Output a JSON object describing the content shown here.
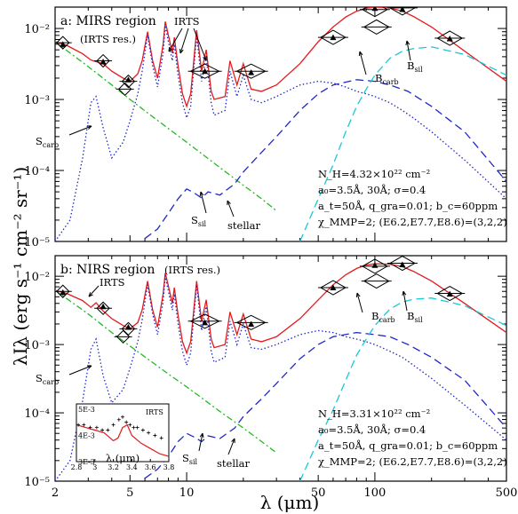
{
  "chart_data": [
    {
      "type": "line",
      "panel": "a",
      "title": "a: MIRS region",
      "subtitle": "(IRTS res.)",
      "xscale": "log",
      "yscale": "log",
      "xlim": [
        2,
        500
      ],
      "ylim": [
        1e-05,
        0.02
      ],
      "ytick_labels": [
        "10⁻⁵",
        "10⁻⁴",
        "10⁻³",
        "10⁻²"
      ],
      "xtick_labels": [
        "2",
        "5",
        "10",
        "50",
        "100",
        "500"
      ],
      "params": [
        "N_H=4.32×10²² cm⁻²",
        "a₀=3.5Å, 30Å; σ=0.4",
        "a_t=50Å, q_gra=0.01; b_c=60ppm",
        "χ_MMP=2; (E6.2,E7.7,E8.6)=(3,2,2)"
      ],
      "labels": {
        "irts": "IRTS",
        "s_carb": "S_carb",
        "s_sil": "S_sil",
        "stellar": "stellar",
        "b_carb": "B_carb",
        "b_sil": "B_sil"
      },
      "series": [
        {
          "name": "total model",
          "style": "red-solid",
          "x": [
            2,
            2.3,
            2.8,
            3.1,
            3.3,
            3.6,
            4,
            4.6,
            5,
            5.5,
            5.8,
            6.2,
            6.6,
            7,
            7.5,
            7.7,
            8,
            8.4,
            8.6,
            9,
            9.5,
            10,
            10.5,
            11.3,
            12,
            12.7,
            13.5,
            14,
            16,
            17,
            18.5,
            20,
            22,
            25,
            30,
            40,
            50,
            60,
            70,
            80,
            90,
            100,
            120,
            140,
            160,
            200,
            300,
            500
          ],
          "y": [
            0.0065,
            0.0058,
            0.0044,
            0.0036,
            0.0034,
            0.0032,
            0.0025,
            0.002,
            0.0018,
            0.0023,
            0.0035,
            0.009,
            0.0035,
            0.002,
            0.006,
            0.0125,
            0.008,
            0.0045,
            0.0075,
            0.003,
            0.0012,
            0.0008,
            0.0012,
            0.0095,
            0.0025,
            0.005,
            0.0013,
            0.001,
            0.0011,
            0.0035,
            0.0016,
            0.0032,
            0.0014,
            0.0013,
            0.0016,
            0.0032,
            0.0065,
            0.0105,
            0.0145,
            0.0175,
            0.0193,
            0.02,
            0.0195,
            0.0175,
            0.0148,
            0.0105,
            0.0048,
            0.0018
          ]
        },
        {
          "name": "emission model",
          "style": "blue-dotted",
          "x": [
            2,
            2.4,
            2.8,
            3.1,
            3.3,
            3.6,
            4,
            4.6,
            5,
            5.5,
            5.8,
            6.2,
            6.6,
            7,
            7.5,
            7.7,
            8,
            8.4,
            8.6,
            9,
            9.5,
            10,
            10.5,
            11.3,
            12,
            12.7,
            13.5,
            14,
            16,
            17,
            18.5,
            20,
            22,
            25,
            30,
            40,
            50,
            60,
            70,
            80,
            90,
            100,
            120,
            140,
            160,
            200,
            300,
            500
          ],
          "y": [
            1e-05,
            2e-05,
            0.00015,
            0.0009,
            0.0011,
            0.0004,
            0.00015,
            0.00025,
            0.0005,
            0.0012,
            0.0025,
            0.008,
            0.003,
            0.0015,
            0.0045,
            0.011,
            0.0065,
            0.0035,
            0.006,
            0.0022,
            0.0009,
            0.00055,
            0.0008,
            0.008,
            0.0018,
            0.004,
            0.0009,
            0.0006,
            0.0007,
            0.0025,
            0.0011,
            0.0022,
            0.001,
            0.0009,
            0.0011,
            0.0016,
            0.0018,
            0.0017,
            0.0015,
            0.0013,
            0.0012,
            0.0011,
            0.0009,
            0.0007,
            0.00055,
            0.00035,
            0.00014,
            4e-05
          ]
        },
        {
          "name": "stellar",
          "style": "green-dashdot",
          "x": [
            2,
            3,
            4,
            5,
            6,
            8,
            10,
            15,
            20,
            25,
            30
          ],
          "y": [
            0.0065,
            0.0029,
            0.0016,
            0.001,
            0.00069,
            0.00039,
            0.00025,
            0.00011,
            6.2e-05,
            4e-05,
            2.7e-05
          ]
        },
        {
          "name": "silicate dust",
          "style": "blue-dashed",
          "x": [
            6,
            7,
            8,
            9,
            10,
            11,
            12,
            13,
            15,
            18,
            20,
            25,
            30,
            40,
            50,
            60,
            80,
            100,
            120,
            150,
            200,
            300,
            500
          ],
          "y": [
            1.1e-05,
            1.5e-05,
            2.5e-05,
            4e-05,
            5.5e-05,
            4.8e-05,
            4.1e-05,
            5e-05,
            4.5e-05,
            6.5e-05,
            9.5e-05,
            0.00018,
            0.0003,
            0.0007,
            0.0012,
            0.0016,
            0.0019,
            0.0018,
            0.0016,
            0.0013,
            0.0008,
            0.00035,
            7e-05
          ]
        },
        {
          "name": "carbon dust",
          "style": "cyan-dashed",
          "x": [
            40,
            50,
            60,
            70,
            80,
            90,
            100,
            120,
            140,
            160,
            200,
            300,
            500
          ],
          "y": [
            1e-05,
            4e-05,
            0.00012,
            0.00035,
            0.0008,
            0.0014,
            0.0022,
            0.0038,
            0.0048,
            0.0052,
            0.0055,
            0.0043,
            0.0022
          ]
        }
      ],
      "observations": {
        "diamonds": [
          {
            "x": 2.2,
            "y": 0.0063
          },
          {
            "x": 3.6,
            "y": 0.0035
          },
          {
            "x": 4.9,
            "y": 0.0018
          },
          {
            "x": 4.7,
            "y": 0.0014
          },
          {
            "x": 12.5,
            "y": 0.0025
          },
          {
            "x": 22,
            "y": 0.0025
          },
          {
            "x": 60,
            "y": 0.0075
          },
          {
            "x": 100,
            "y": 0.0185
          },
          {
            "x": 102,
            "y": 0.0105
          },
          {
            "x": 140,
            "y": 0.0195
          },
          {
            "x": 250,
            "y": 0.0073
          }
        ],
        "triangles": [
          {
            "x": 2.2,
            "y": 0.006
          },
          {
            "x": 3.6,
            "y": 0.0034
          },
          {
            "x": 4.9,
            "y": 0.0019
          },
          {
            "x": 12.5,
            "y": 0.0025
          },
          {
            "x": 22,
            "y": 0.0024
          },
          {
            "x": 60,
            "y": 0.0075
          },
          {
            "x": 100,
            "y": 0.0193
          },
          {
            "x": 140,
            "y": 0.0186
          },
          {
            "x": 250,
            "y": 0.0072
          }
        ]
      }
    },
    {
      "type": "line",
      "panel": "b",
      "title": "b: NIRS region",
      "subtitle": "(IRTS res.)",
      "xlabel": "λ (μm)",
      "ylabel": "λIλ (erg s⁻¹ cm⁻² sr⁻¹)",
      "xscale": "log",
      "yscale": "log",
      "xlim": [
        2,
        500
      ],
      "ylim": [
        1e-05,
        0.02
      ],
      "ytick_labels": [
        "10⁻⁵",
        "10⁻⁴",
        "10⁻³",
        "10⁻²"
      ],
      "xtick_labels": [
        "2",
        "5",
        "10",
        "50",
        "100",
        "500"
      ],
      "params": [
        "N_H=3.31×10²² cm⁻²",
        "a₀=3.5Å, 30Å; σ=0.4",
        "a_t=50Å, q_gra=0.01; b_c=60ppm",
        "χ_MMP=2; (E6.2,E7.7,E8.6)=(3,2,2)"
      ],
      "labels": {
        "irts": "IRTS",
        "s_carb": "S_carb",
        "s_sil": "S_sil",
        "stellar": "stellar",
        "b_carb": "B_carb",
        "b_sil": "B_sil"
      },
      "inset": {
        "xlabel": "λ (μm)",
        "label": "IRTS",
        "xtick_labels": [
          "2.8",
          "3",
          "3.2",
          "3.4",
          "3.6",
          "3.8"
        ],
        "ytick_labels": [
          "5E-3",
          "4E-3",
          "3E-3"
        ],
        "xlim": [
          2.8,
          3.8
        ],
        "ylim": [
          0.003,
          0.0052
        ],
        "model_x": [
          2.8,
          2.9,
          3.0,
          3.1,
          3.2,
          3.25,
          3.3,
          3.35,
          3.4,
          3.5,
          3.6,
          3.7,
          3.8
        ],
        "model_y": [
          0.0044,
          0.0043,
          0.0042,
          0.0041,
          0.0038,
          0.0039,
          0.0043,
          0.0044,
          0.004,
          0.0037,
          0.0035,
          0.0033,
          0.0032
        ],
        "points_x": [
          2.82,
          2.88,
          2.95,
          3.02,
          3.08,
          3.14,
          3.2,
          3.26,
          3.3,
          3.34,
          3.38,
          3.42,
          3.46,
          3.52,
          3.58,
          3.65,
          3.72
        ],
        "points_y": [
          0.0044,
          0.0044,
          0.0043,
          0.0043,
          0.0042,
          0.0042,
          0.0044,
          0.0046,
          0.0047,
          0.0045,
          0.0044,
          0.0043,
          0.0043,
          0.0042,
          0.0041,
          0.004,
          0.0039
        ]
      },
      "series": [
        {
          "name": "total model",
          "style": "red-solid",
          "x": [
            2,
            2.3,
            2.8,
            3.1,
            3.3,
            3.6,
            4,
            4.6,
            5,
            5.5,
            5.8,
            6.2,
            6.6,
            7,
            7.5,
            7.7,
            8,
            8.4,
            8.6,
            9,
            9.5,
            10,
            10.5,
            11.3,
            12,
            12.7,
            13.5,
            14,
            16,
            17,
            18.5,
            20,
            22,
            25,
            30,
            40,
            50,
            60,
            70,
            80,
            90,
            100,
            120,
            140,
            160,
            200,
            300,
            500
          ],
          "y": [
            0.0062,
            0.0056,
            0.0044,
            0.0035,
            0.0041,
            0.0031,
            0.0024,
            0.0019,
            0.0017,
            0.0021,
            0.0032,
            0.0085,
            0.0032,
            0.0018,
            0.0055,
            0.0112,
            0.0072,
            0.004,
            0.0068,
            0.0027,
            0.0011,
            0.00075,
            0.0011,
            0.0085,
            0.0022,
            0.0045,
            0.0012,
            0.0009,
            0.001,
            0.003,
            0.0014,
            0.0028,
            0.0012,
            0.0011,
            0.0013,
            0.0024,
            0.0045,
            0.0075,
            0.0105,
            0.013,
            0.0146,
            0.0152,
            0.015,
            0.0138,
            0.0118,
            0.0085,
            0.004,
            0.0015
          ]
        },
        {
          "name": "emission model",
          "style": "blue-dotted",
          "x": [
            2,
            2.4,
            2.8,
            3.1,
            3.3,
            3.6,
            4,
            4.6,
            5,
            5.5,
            5.8,
            6.2,
            6.6,
            7,
            7.5,
            7.7,
            8,
            8.4,
            8.6,
            9,
            9.5,
            10,
            10.5,
            11.3,
            12,
            12.7,
            13.5,
            14,
            16,
            17,
            18.5,
            20,
            22,
            25,
            30,
            40,
            50,
            60,
            70,
            80,
            90,
            100,
            120,
            140,
            160,
            200,
            300,
            500
          ],
          "y": [
            1e-05,
            2e-05,
            0.00015,
            0.00085,
            0.0012,
            0.00035,
            0.00014,
            0.00022,
            0.00045,
            0.0011,
            0.0023,
            0.0075,
            0.0028,
            0.0014,
            0.0042,
            0.0102,
            0.006,
            0.0032,
            0.0055,
            0.002,
            0.0008,
            0.0005,
            0.00075,
            0.0075,
            0.0016,
            0.0036,
            0.0008,
            0.00055,
            0.00065,
            0.0022,
            0.001,
            0.002,
            0.0009,
            0.00085,
            0.001,
            0.0014,
            0.0016,
            0.0015,
            0.0013,
            0.0012,
            0.0011,
            0.001,
            0.0008,
            0.00065,
            0.0005,
            0.00032,
            0.00013,
            4e-05
          ]
        },
        {
          "name": "stellar",
          "style": "green-dashdot",
          "x": [
            2,
            3,
            4,
            5,
            6,
            8,
            10,
            15,
            20,
            25,
            30
          ],
          "y": [
            0.0062,
            0.0028,
            0.0015,
            0.00095,
            0.00066,
            0.00037,
            0.00024,
            0.000105,
            6e-05,
            3.8e-05,
            2.6e-05
          ]
        },
        {
          "name": "silicate dust",
          "style": "blue-dashed",
          "x": [
            6,
            7,
            8,
            9,
            10,
            11,
            12,
            13,
            15,
            18,
            20,
            25,
            30,
            40,
            50,
            60,
            80,
            100,
            120,
            150,
            200,
            300,
            500
          ],
          "y": [
            1.1e-05,
            1.5e-05,
            2.3e-05,
            3.8e-05,
            5e-05,
            4.4e-05,
            3.8e-05,
            4.6e-05,
            4.2e-05,
            6e-05,
            8.8e-05,
            0.00016,
            0.00027,
            0.00062,
            0.001,
            0.0013,
            0.0015,
            0.0014,
            0.0013,
            0.001,
            0.00065,
            0.0003,
            6e-05
          ]
        },
        {
          "name": "carbon dust",
          "style": "cyan-dashed",
          "x": [
            40,
            50,
            60,
            70,
            80,
            90,
            100,
            120,
            140,
            160,
            200,
            300,
            500
          ],
          "y": [
            1e-05,
            4e-05,
            0.00011,
            0.0003,
            0.0007,
            0.0012,
            0.0019,
            0.0033,
            0.0042,
            0.0046,
            0.0048,
            0.0037,
            0.0019
          ]
        }
      ],
      "observations": {
        "diamonds": [
          {
            "x": 2.2,
            "y": 0.006
          },
          {
            "x": 3.6,
            "y": 0.0034
          },
          {
            "x": 4.9,
            "y": 0.0017
          },
          {
            "x": 4.6,
            "y": 0.0013
          },
          {
            "x": 12.5,
            "y": 0.0022
          },
          {
            "x": 22,
            "y": 0.0021
          },
          {
            "x": 60,
            "y": 0.0068
          },
          {
            "x": 100,
            "y": 0.014
          },
          {
            "x": 102,
            "y": 0.0085
          },
          {
            "x": 140,
            "y": 0.0155
          },
          {
            "x": 250,
            "y": 0.0056
          }
        ],
        "triangles": [
          {
            "x": 2.2,
            "y": 0.0058
          },
          {
            "x": 3.6,
            "y": 0.0036
          },
          {
            "x": 4.9,
            "y": 0.0018
          },
          {
            "x": 12.5,
            "y": 0.0021
          },
          {
            "x": 22,
            "y": 0.002
          },
          {
            "x": 60,
            "y": 0.0068
          },
          {
            "x": 100,
            "y": 0.0145
          },
          {
            "x": 140,
            "y": 0.0148
          },
          {
            "x": 250,
            "y": 0.0055
          }
        ]
      }
    }
  ]
}
